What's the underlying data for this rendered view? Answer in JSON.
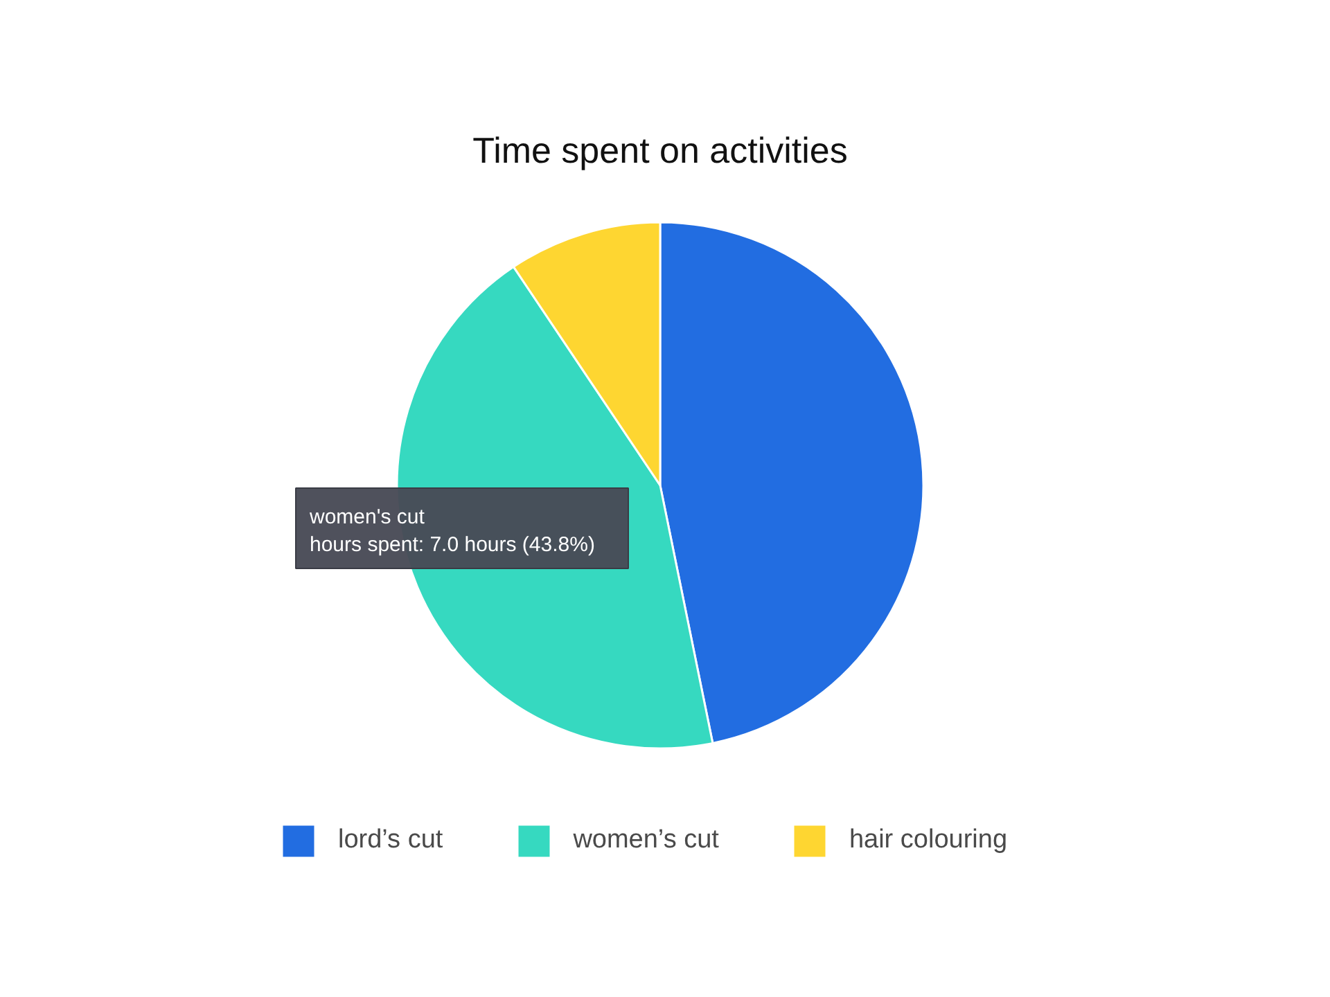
{
  "chart_data": {
    "type": "pie",
    "title": "Time spent on activities",
    "categories": [
      "lord’s cut",
      "women’s cut",
      "hair colouring"
    ],
    "values": [
      46.8,
      43.8,
      9.4
    ],
    "colors": [
      "#226de1",
      "#36d9c0",
      "#fed631"
    ],
    "legend": "bottom",
    "annotations": [
      "women's cut",
      "hours spent: 7.0 hours (43.8%)"
    ]
  }
}
